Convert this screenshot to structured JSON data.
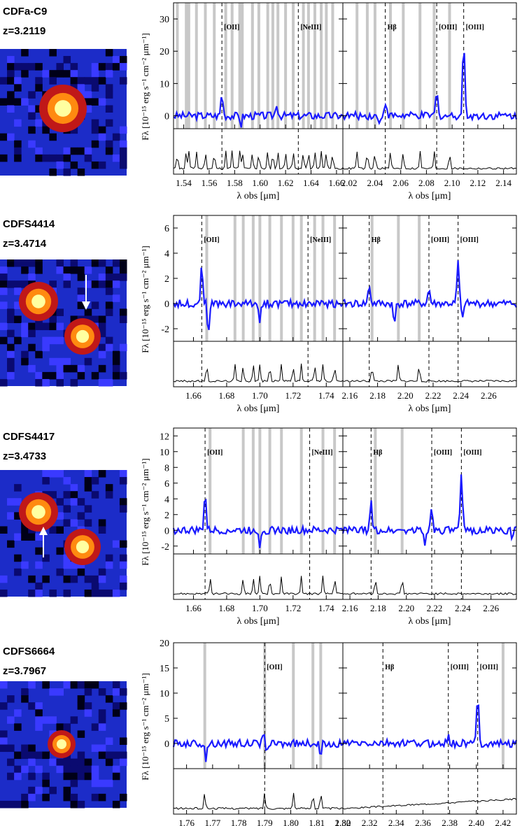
{
  "colors": {
    "spectrum": "#1a1aff",
    "sky": "#000000",
    "skyband": "#c8c8c8"
  },
  "objects": [
    {
      "name": "CDFa-C9",
      "z": "z=3.2119",
      "arrow": "none",
      "chart_data": {
        "type": "line",
        "ylabel": "F_λ [10^-15 erg s^-1 cm^-2 μm^-1]",
        "xlabel": "λ_obs [μm]",
        "ylim": [
          -4,
          35
        ],
        "yticks": [
          0,
          10,
          20,
          30
        ],
        "left": {
          "xlim": [
            1.532,
            1.665
          ],
          "xticks": [
            1.54,
            1.56,
            1.58,
            1.6,
            1.62,
            1.64,
            1.66
          ],
          "lines": [
            {
              "label": "[OII]",
              "x": 1.57
            },
            {
              "label": "[NeIII]",
              "x": 1.63
            }
          ],
          "bands": [
            1.535,
            1.542,
            1.544,
            1.55,
            1.557,
            1.564,
            1.573,
            1.578,
            1.584,
            1.586,
            1.594,
            1.599,
            1.606,
            1.61,
            1.614,
            1.62,
            1.626,
            1.634,
            1.638,
            1.643,
            1.648,
            1.652,
            1.657
          ],
          "peaks": [
            {
              "x": 1.57,
              "a": 7
            },
            {
              "x": 1.613,
              "a": 4
            }
          ],
          "dips": [
            {
              "x": 1.585,
              "a": -3
            }
          ]
        },
        "right": {
          "xlim": [
            2.015,
            2.15
          ],
          "xticks": [
            2.02,
            2.04,
            2.06,
            2.08,
            2.1,
            2.12,
            2.14
          ],
          "lines": [
            {
              "label": "Hβ",
              "x": 2.048
            },
            {
              "label": "[OIII]",
              "x": 2.088
            },
            {
              "label": "[OIII]",
              "x": 2.109
            }
          ],
          "bands": [
            2.026,
            2.034,
            2.04,
            2.052,
            2.062,
            2.075,
            2.086,
            2.098
          ],
          "peaks": [
            {
              "x": 2.048,
              "a": 4.5
            },
            {
              "x": 2.088,
              "a": 7.5
            },
            {
              "x": 2.109,
              "a": 24
            }
          ],
          "dips": [
            {
              "x": 2.043,
              "a": -3
            }
          ]
        }
      }
    },
    {
      "name": "CDFS4414",
      "z": "z=3.4714",
      "arrow": "down",
      "chart_data": {
        "type": "line",
        "ylabel": "F_λ [10^-15 erg s^-1 cm^-2 μm^-1]",
        "xlabel": "λ_obs [μm]",
        "ylim": [
          -3,
          7
        ],
        "yticks": [
          -2,
          0,
          2,
          4,
          6
        ],
        "left": {
          "xlim": [
            1.648,
            1.75
          ],
          "xticks": [
            1.66,
            1.68,
            1.7,
            1.72,
            1.74
          ],
          "lines": [
            {
              "label": "[OII]",
              "x": 1.665
            },
            {
              "label": "[NeIII]",
              "x": 1.729
            }
          ],
          "bands": [
            1.668,
            1.685,
            1.69,
            1.696,
            1.7,
            1.706,
            1.713,
            1.72,
            1.725,
            1.733,
            1.738,
            1.745
          ],
          "peaks": [
            {
              "x": 1.665,
              "a": 3.4
            }
          ],
          "dips": [
            {
              "x": 1.669,
              "a": -2.8
            },
            {
              "x": 1.7,
              "a": -1.5
            }
          ]
        },
        "right": {
          "xlim": [
            2.155,
            2.28
          ],
          "xticks": [
            2.16,
            2.18,
            2.2,
            2.22,
            2.24,
            2.26
          ],
          "lines": [
            {
              "label": "Hβ",
              "x": 2.174
            },
            {
              "label": "[OIII]",
              "x": 2.217
            },
            {
              "label": "[OIII]",
              "x": 2.238
            }
          ],
          "bands": [
            2.176,
            2.195,
            2.21
          ],
          "peaks": [
            {
              "x": 2.174,
              "a": 1.5
            },
            {
              "x": 2.217,
              "a": 1.2
            },
            {
              "x": 2.238,
              "a": 3.4
            }
          ],
          "dips": [
            {
              "x": 2.192,
              "a": -2
            },
            {
              "x": 2.241,
              "a": -1.5
            }
          ]
        }
      }
    },
    {
      "name": "CDFS4417",
      "z": "z=3.4733",
      "arrow": "up",
      "chart_data": {
        "type": "line",
        "ylabel": "F_λ [10^-15 erg s^-1 cm^-2 μm^-1]",
        "xlabel": "λ_obs [μm]",
        "ylim": [
          -3,
          13
        ],
        "yticks": [
          -2,
          0,
          2,
          4,
          6,
          8,
          10,
          12
        ],
        "left": {
          "xlim": [
            1.648,
            1.75
          ],
          "xticks": [
            1.66,
            1.68,
            1.7,
            1.72,
            1.74
          ],
          "lines": [
            {
              "label": "[OII]",
              "x": 1.667
            },
            {
              "label": "[NeIII]",
              "x": 1.73
            }
          ],
          "bands": [
            1.67,
            1.69,
            1.696,
            1.7,
            1.706,
            1.713,
            1.725,
            1.738,
            1.745
          ],
          "peaks": [
            {
              "x": 1.667,
              "a": 5
            }
          ],
          "dips": [
            {
              "x": 1.7,
              "a": -2
            }
          ]
        },
        "right": {
          "xlim": [
            2.155,
            2.278
          ],
          "xticks": [
            2.16,
            2.18,
            2.2,
            2.22,
            2.24,
            2.26
          ],
          "lines": [
            {
              "label": "Hβ",
              "x": 2.175
            },
            {
              "label": "[OIII]",
              "x": 2.218
            },
            {
              "label": "[OIII]",
              "x": 2.239
            }
          ],
          "bands": [
            2.178,
            2.197
          ],
          "peaks": [
            {
              "x": 2.175,
              "a": 3.5
            },
            {
              "x": 2.218,
              "a": 3.3
            },
            {
              "x": 2.239,
              "a": 7.2
            }
          ],
          "dips": [
            {
              "x": 2.213,
              "a": -2
            },
            {
              "x": 2.275,
              "a": -1.5
            }
          ]
        }
      }
    },
    {
      "name": "CDFS6664",
      "z": "z=3.7967",
      "arrow": "none",
      "chart_data": {
        "type": "line",
        "ylabel": "F_λ [10^-15 erg s^-1 cm^-2 μm^-1]",
        "xlabel": "λ_obs [μm]",
        "ylim": [
          -5,
          20
        ],
        "yticks": [
          0,
          5,
          10,
          15,
          20
        ],
        "left": {
          "xlim": [
            1.755,
            1.82
          ],
          "xticks": [
            1.76,
            1.77,
            1.78,
            1.79,
            1.8,
            1.81,
            1.82
          ],
          "lines": [
            {
              "label": "[OII]",
              "x": 1.79
            }
          ],
          "bands": [
            1.767,
            1.79,
            1.801,
            1.8085,
            1.8115
          ],
          "peaks": [
            {
              "x": 1.7895,
              "a": 2
            }
          ],
          "dips": [
            {
              "x": 1.7675,
              "a": -3.5
            },
            {
              "x": 1.8115,
              "a": -3.5
            },
            {
              "x": 1.7905,
              "a": -2
            }
          ]
        },
        "right": {
          "xlim": [
            2.3,
            2.43
          ],
          "xticks": [
            2.3,
            2.32,
            2.34,
            2.36,
            2.38,
            2.4,
            2.42
          ],
          "lines": [
            {
              "label": "Hβ",
              "x": 2.33
            },
            {
              "label": "[OIII]",
              "x": 2.379
            },
            {
              "label": "[OIII]",
              "x": 2.401
            }
          ],
          "bands": [
            2.42
          ],
          "peaks": [
            {
              "x": 2.401,
              "a": 10
            },
            {
              "x": 2.379,
              "a": 1.5
            }
          ],
          "dips": []
        }
      }
    }
  ]
}
